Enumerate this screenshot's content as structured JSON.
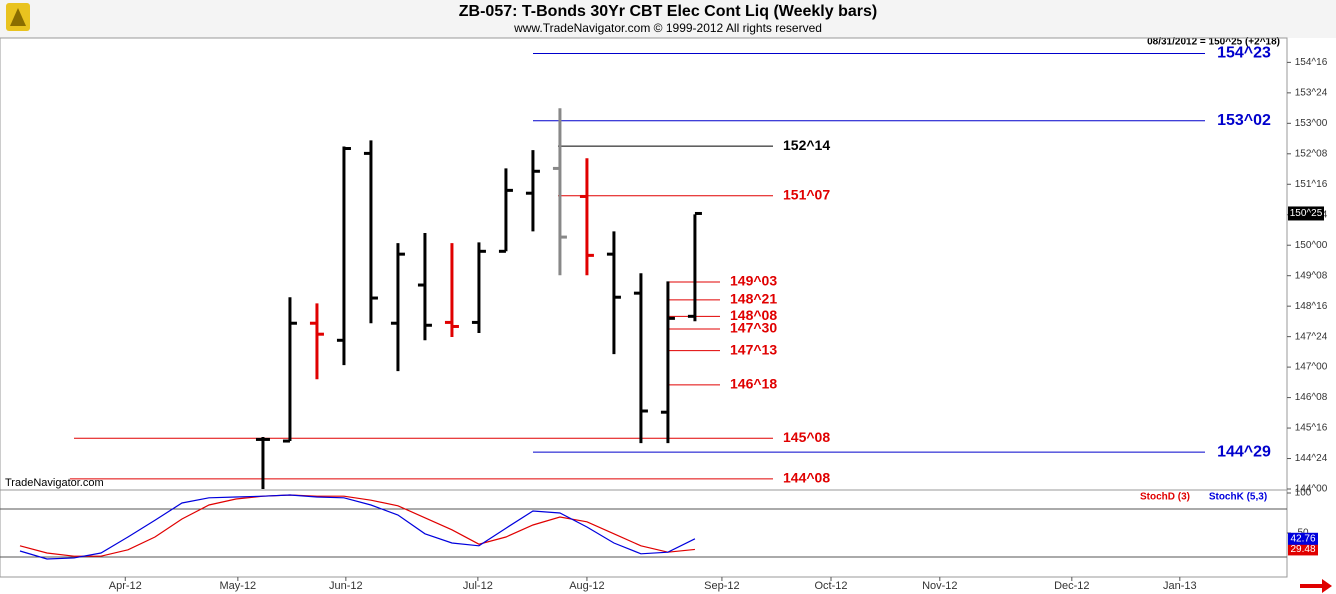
{
  "header": {
    "title": "ZB-057:  T-Bonds 30Yr CBT Elec Cont Liq  (Weekly bars)",
    "subtitle": "www.TradeNavigator.com © 1999-2012 All rights reserved",
    "quote": "08/31/2012 = 150^25 (+2^18)",
    "watermark": "TradeNavigator.com"
  },
  "chart_data": [
    {
      "type": "ohlc",
      "categories": [
        null,
        null,
        null,
        null,
        null,
        null,
        null,
        null,
        null,
        null,
        null,
        null,
        null,
        null,
        null,
        null,
        null
      ],
      "open": [
        145.22,
        145.18,
        148.08,
        147.66,
        152.26,
        148.08,
        149.02,
        148.1,
        148.1,
        149.85,
        151.28,
        151.89,
        151.2,
        149.78,
        148.82,
        145.89,
        148.25
      ],
      "high": [
        145.28,
        148.72,
        148.57,
        152.43,
        152.58,
        150.05,
        150.3,
        150.05,
        150.07,
        151.89,
        152.34,
        153.37,
        152.14,
        150.34,
        149.31,
        149.11,
        150.76
      ],
      "low": [
        144.0,
        145.18,
        146.7,
        147.05,
        148.08,
        146.9,
        147.66,
        147.74,
        147.84,
        149.85,
        150.34,
        149.26,
        149.26,
        147.32,
        145.13,
        145.13,
        148.13
      ],
      "close": [
        145.22,
        148.08,
        147.81,
        152.38,
        148.7,
        149.78,
        148.03,
        148.0,
        149.85,
        151.35,
        151.82,
        150.2,
        149.75,
        148.72,
        145.92,
        148.2,
        150.78125
      ],
      "colors": [
        "#000000",
        "#000000",
        "#e00000",
        "#000000",
        "#000000",
        "#000000",
        "#000000",
        "#e00000",
        "#000000",
        "#000000",
        "#000000",
        "#888888",
        "#e00000",
        "#000000",
        "#000000",
        "#000000",
        "#000000"
      ],
      "last_label": "150^25",
      "xlim": [
        -9.74,
        37.93
      ],
      "ylim": [
        144.0,
        155.1
      ],
      "yticks": [
        {
          "value": 154.5,
          "label": "154^16"
        },
        {
          "value": 153.75,
          "label": "153^24"
        },
        {
          "value": 153.0,
          "label": "153^00"
        },
        {
          "value": 152.25,
          "label": "152^08"
        },
        {
          "value": 151.5,
          "label": "151^16"
        },
        {
          "value": 150.75,
          "label": "150^24"
        },
        {
          "value": 150.0,
          "label": "150^00"
        },
        {
          "value": 149.25,
          "label": "149^08"
        },
        {
          "value": 148.5,
          "label": "148^16"
        },
        {
          "value": 147.75,
          "label": "147^24"
        },
        {
          "value": 147.0,
          "label": "147^00"
        },
        {
          "value": 146.25,
          "label": "146^08"
        },
        {
          "value": 145.5,
          "label": "145^16"
        },
        {
          "value": 144.75,
          "label": "144^24"
        },
        {
          "value": 144.0,
          "label": "144^00"
        }
      ],
      "levels": [
        {
          "value": 154.71875,
          "label": "154^23",
          "color": "#0000cc"
        },
        {
          "value": 153.0625,
          "label": "153^02",
          "color": "#0000cc"
        },
        {
          "value": 152.4375,
          "label": "152^14",
          "color": "#000000"
        },
        {
          "value": 151.21875,
          "label": "151^07",
          "color": "#e00000"
        },
        {
          "value": 149.09375,
          "label": "149^03",
          "color": "#e00000"
        },
        {
          "value": 148.65625,
          "label": "148^21",
          "color": "#e00000"
        },
        {
          "value": 148.25,
          "label": "148^08",
          "color": "#e00000"
        },
        {
          "value": 147.9375,
          "label": "147^30",
          "color": "#e00000"
        },
        {
          "value": 147.40625,
          "label": "147^13",
          "color": "#e00000"
        },
        {
          "value": 146.5625,
          "label": "146^18",
          "color": "#e00000"
        },
        {
          "value": 145.25,
          "label": "145^08",
          "color": "#e00000"
        },
        {
          "value": 144.90625,
          "label": "144^29",
          "color": "#0000cc"
        },
        {
          "value": 144.25,
          "label": "144^08",
          "color": "#e00000"
        }
      ]
    },
    {
      "type": "line",
      "categories": [
        null,
        null,
        null,
        null,
        null,
        null,
        null,
        null,
        null,
        null,
        null,
        null,
        null,
        null,
        null,
        null,
        null,
        null,
        null,
        null,
        null,
        null,
        null,
        null,
        null,
        null
      ],
      "series": [
        {
          "name": "StochD (3)",
          "color": "#e00000",
          "values": [
            34,
            25,
            21,
            21,
            29,
            45,
            67.5,
            85,
            92.5,
            96,
            97.5,
            96,
            96,
            91,
            84,
            69,
            54,
            36,
            45,
            60,
            70,
            64,
            49,
            34,
            26,
            29.48
          ]
        },
        {
          "name": "StochK (5,3)",
          "color": "#0000dd",
          "values": [
            27.5,
            17.5,
            18.8,
            25,
            45,
            66,
            87.5,
            94,
            95,
            96,
            97.5,
            95,
            94,
            85,
            72.5,
            49,
            37.5,
            34,
            56,
            77.5,
            75,
            57.5,
            37.5,
            24,
            26,
            42.76
          ]
        }
      ],
      "xlim": [
        -0.74,
        46.93
      ],
      "ylim": [
        0,
        100
      ],
      "yticks": [
        100,
        50
      ],
      "levels": [
        80,
        20
      ],
      "xticks": [
        {
          "value": 3.9,
          "label": "Apr-12"
        },
        {
          "value": 8.07,
          "label": "May-12"
        },
        {
          "value": 12.07,
          "label": "Jun-12"
        },
        {
          "value": 16.96,
          "label": "Jul-12"
        },
        {
          "value": 21.0,
          "label": "Aug-12"
        },
        {
          "value": 26.0,
          "label": "Sep-12"
        },
        {
          "value": 30.04,
          "label": "Oct-12"
        },
        {
          "value": 34.07,
          "label": "Nov-12"
        },
        {
          "value": 38.96,
          "label": "Dec-12"
        },
        {
          "value": 42.96,
          "label": "Jan-13"
        }
      ]
    }
  ]
}
